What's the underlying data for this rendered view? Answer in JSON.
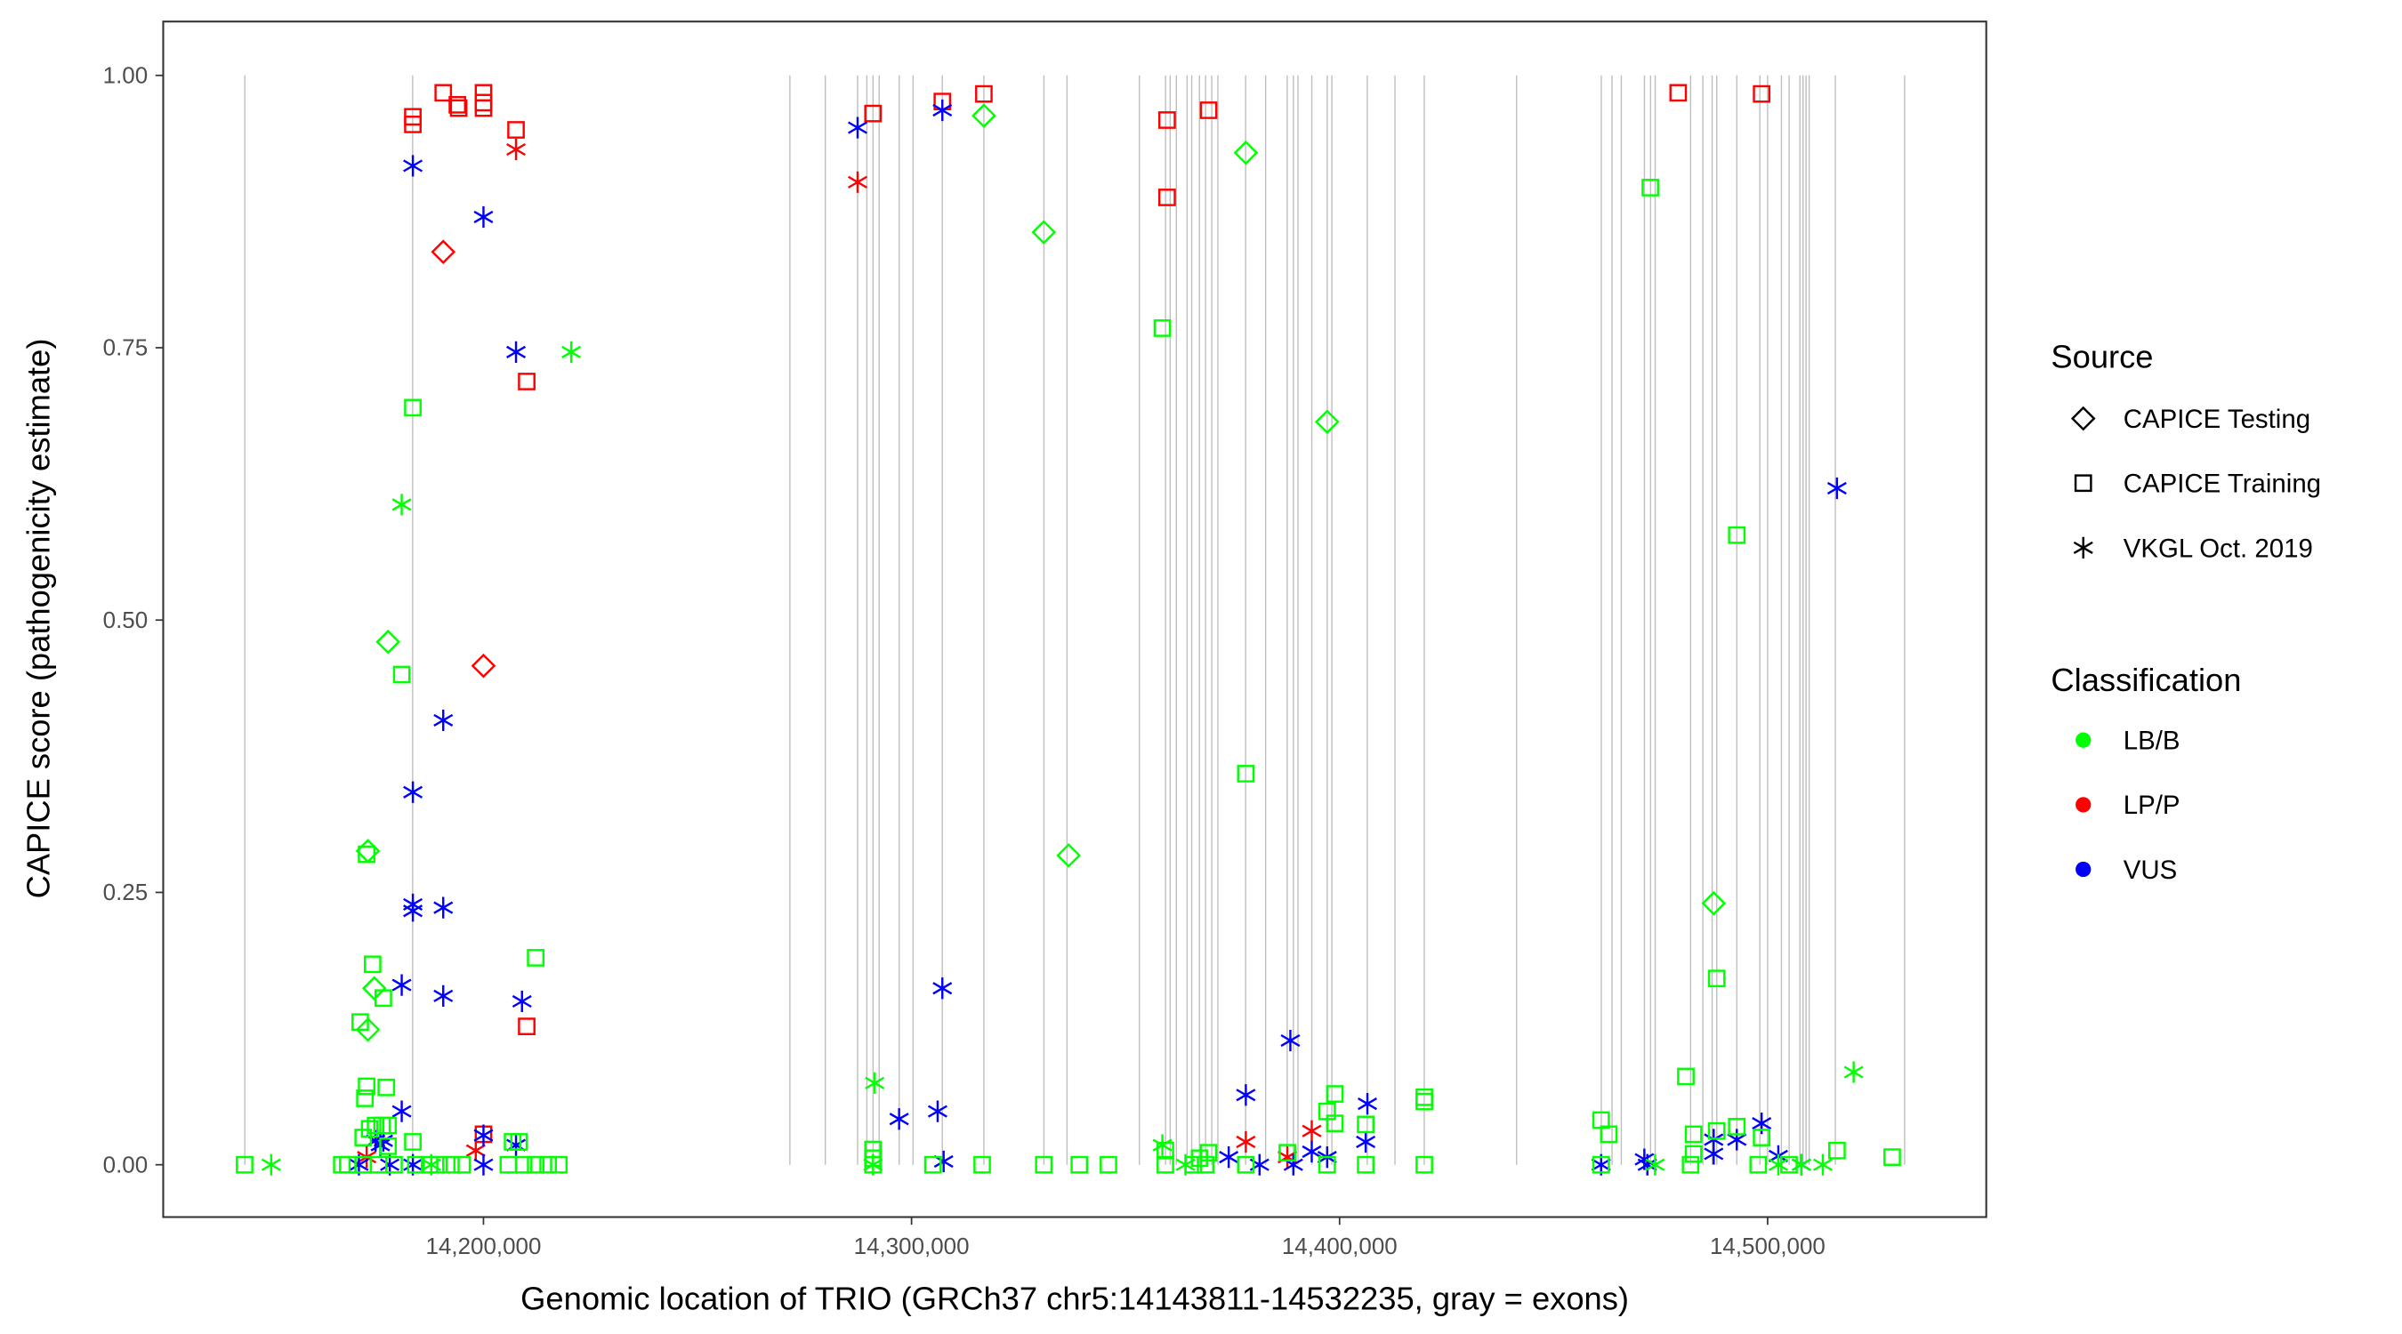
{
  "chart_data": {
    "type": "scatter",
    "title": "",
    "xlabel": "Genomic location of TRIO (GRCh37 chr5:14143811-14532235, gray = exons)",
    "ylabel": "CAPICE score (pathogenicity estimate)",
    "xlim": [
      14130000,
      14541000
    ],
    "ylim": [
      -0.05,
      1.05
    ],
    "x_ticks": [
      14200000,
      14300000,
      14400000,
      14500000
    ],
    "x_tick_labels": [
      "14,200,000",
      "14,300,000",
      "14,400,000",
      "14,500,000"
    ],
    "y_ticks": [
      0,
      0.25,
      0.5,
      0.75,
      1.0
    ],
    "y_tick_labels": [
      "0.00",
      "0.25",
      "0.50",
      "0.75",
      "1.00"
    ],
    "grid": false,
    "legend_placement": "right",
    "legend": {
      "source_title": "Source",
      "source_items": [
        {
          "label": "CAPICE Testing",
          "shape": "diamond"
        },
        {
          "label": "CAPICE Training",
          "shape": "square"
        },
        {
          "label": "VKGL Oct. 2019",
          "shape": "asterisk"
        }
      ],
      "class_title": "Classification",
      "class_items": [
        {
          "label": "LB/B",
          "color": "#00ff00"
        },
        {
          "label": "LP/P",
          "color": "#ff0000"
        },
        {
          "label": "VUS",
          "color": "#0000ff"
        }
      ]
    },
    "exon_color": "#bebebe",
    "exons": [
      14144246,
      14183454,
      14271580,
      14279853,
      14287407,
      14289565,
      14291004,
      14292443,
      14297119,
      14300356,
      14307191,
      14316903,
      14330931,
      14336326,
      14353232,
      14359347,
      14360426,
      14361865,
      14364383,
      14365462,
      14367261,
      14368699,
      14370138,
      14371577,
      14378052,
      14382728,
      14387763,
      14389202,
      14390281,
      14393519,
      14397116,
      14398195,
      14406468,
      14412942,
      14419777,
      14441359,
      14461142,
      14463660,
      14465818,
      14471214,
      14472653,
      14473732,
      14482005,
      14484882,
      14487041,
      14488120,
      14492796,
      14498191,
      14499990,
      14503227,
      14505026,
      14507544,
      14508263,
      14508983,
      14509702,
      14515817,
      14532003
    ],
    "series": [
      {
        "source": "CAPICE Training",
        "class": "LP/P",
        "points": [
          [
            14190600,
            0.984
          ],
          [
            14183500,
            0.962
          ],
          [
            14183500,
            0.955
          ],
          [
            14193900,
            0.973
          ],
          [
            14194200,
            0.97
          ],
          [
            14200000,
            0.984
          ],
          [
            14200000,
            0.975
          ],
          [
            14200000,
            0.97
          ],
          [
            14207600,
            0.95
          ],
          [
            14210100,
            0.719
          ],
          [
            14210100,
            0.127
          ],
          [
            14200000,
            0.028
          ],
          [
            14291000,
            0.965
          ],
          [
            14307200,
            0.976
          ],
          [
            14316900,
            0.983
          ],
          [
            14359700,
            0.959
          ],
          [
            14369400,
            0.968
          ],
          [
            14359700,
            0.888
          ],
          [
            14479100,
            0.984
          ],
          [
            14498600,
            0.983
          ]
        ]
      },
      {
        "source": "VKGL Oct. 2019",
        "class": "LP/P",
        "points": [
          [
            14207600,
            0.932
          ],
          [
            14198200,
            0.013
          ],
          [
            14172700,
            0.007
          ],
          [
            14287400,
            0.902
          ],
          [
            14378100,
            0.021
          ],
          [
            14393500,
            0.031
          ],
          [
            14387800,
            0.007
          ]
        ]
      },
      {
        "source": "CAPICE Testing",
        "class": "LP/P",
        "points": [
          [
            14190600,
            0.838
          ],
          [
            14200000,
            0.458
          ]
        ]
      },
      {
        "source": "VKGL Oct. 2019",
        "class": "VUS",
        "points": [
          [
            14183500,
            0.917
          ],
          [
            14200000,
            0.87
          ],
          [
            14207600,
            0.746
          ],
          [
            14190600,
            0.408
          ],
          [
            14183500,
            0.342
          ],
          [
            14183500,
            0.239
          ],
          [
            14183500,
            0.233
          ],
          [
            14190600,
            0.236
          ],
          [
            14180900,
            0.165
          ],
          [
            14190600,
            0.155
          ],
          [
            14209000,
            0.15
          ],
          [
            14180900,
            0.049
          ],
          [
            14174800,
            0.022
          ],
          [
            14176600,
            0.022
          ],
          [
            14175900,
            0.018
          ],
          [
            14207600,
            0.018
          ],
          [
            14200000,
            0.027
          ],
          [
            14170900,
            0.0
          ],
          [
            14183500,
            0.0
          ],
          [
            14178100,
            0.0
          ],
          [
            14200000,
            0.0
          ],
          [
            14287400,
            0.952
          ],
          [
            14307200,
            0.968
          ],
          [
            14307200,
            0.162
          ],
          [
            14297100,
            0.042
          ],
          [
            14306100,
            0.049
          ],
          [
            14307500,
            0.003
          ],
          [
            14388500,
            0.114
          ],
          [
            14378100,
            0.064
          ],
          [
            14406500,
            0.056
          ],
          [
            14406100,
            0.021
          ],
          [
            14374100,
            0.007
          ],
          [
            14381300,
            0.0
          ],
          [
            14389200,
            0.0
          ],
          [
            14393500,
            0.012
          ],
          [
            14397100,
            0.007
          ],
          [
            14516200,
            0.621
          ],
          [
            14498600,
            0.038
          ],
          [
            14492800,
            0.023
          ],
          [
            14487400,
            0.023
          ],
          [
            14487400,
            0.01
          ],
          [
            14502500,
            0.008
          ],
          [
            14461100,
            0.0
          ],
          [
            14471200,
            0.005
          ],
          [
            14471900,
            0.0
          ],
          [
            14507900,
            0.0
          ]
        ]
      },
      {
        "source": "CAPICE Testing",
        "class": "LB/B",
        "points": [
          [
            14177700,
            0.48
          ],
          [
            14173000,
            0.288
          ],
          [
            14174500,
            0.162
          ],
          [
            14173000,
            0.124
          ],
          [
            14316900,
            0.963
          ],
          [
            14330900,
            0.856
          ],
          [
            14336700,
            0.284
          ],
          [
            14378100,
            0.929
          ],
          [
            14397100,
            0.682
          ],
          [
            14487400,
            0.24
          ]
        ]
      },
      {
        "source": "CAPICE Training",
        "class": "LB/B",
        "points": [
          [
            14183500,
            0.695
          ],
          [
            14180900,
            0.45
          ],
          [
            14172700,
            0.285
          ],
          [
            14174100,
            0.184
          ],
          [
            14176600,
            0.153
          ],
          [
            14212200,
            0.19
          ],
          [
            14171200,
            0.131
          ],
          [
            14172700,
            0.072
          ],
          [
            14177300,
            0.071
          ],
          [
            14172300,
            0.061
          ],
          [
            14144200,
            0.0
          ],
          [
            14166900,
            0.0
          ],
          [
            14168300,
            0.0
          ],
          [
            14171900,
            0.0
          ],
          [
            14175500,
            0.0
          ],
          [
            14179100,
            0.0
          ],
          [
            14184200,
            0.0
          ],
          [
            14187400,
            0.0
          ],
          [
            14189600,
            0.0
          ],
          [
            14192400,
            0.0
          ],
          [
            14195000,
            0.0
          ],
          [
            14205800,
            0.0
          ],
          [
            14209400,
            0.0
          ],
          [
            14212200,
            0.0
          ],
          [
            14215100,
            0.0
          ],
          [
            14217600,
            0.0
          ],
          [
            14171900,
            0.025
          ],
          [
            14173400,
            0.033
          ],
          [
            14174800,
            0.036
          ],
          [
            14176300,
            0.036
          ],
          [
            14177700,
            0.036
          ],
          [
            14183500,
            0.021
          ],
          [
            14206800,
            0.021
          ],
          [
            14208300,
            0.021
          ],
          [
            14177700,
            0.017
          ],
          [
            14291000,
            0.014
          ],
          [
            14291000,
            0.006
          ],
          [
            14291000,
            0.0
          ],
          [
            14305000,
            0.0
          ],
          [
            14316500,
            0.0
          ],
          [
            14330900,
            0.0
          ],
          [
            14339200,
            0.0
          ],
          [
            14346000,
            0.0
          ],
          [
            14358600,
            0.768
          ],
          [
            14378100,
            0.359
          ],
          [
            14398900,
            0.065
          ],
          [
            14397100,
            0.049
          ],
          [
            14398900,
            0.038
          ],
          [
            14406100,
            0.037
          ],
          [
            14419800,
            0.062
          ],
          [
            14419800,
            0.058
          ],
          [
            14359300,
            0.013
          ],
          [
            14359300,
            0.0
          ],
          [
            14365800,
            0.0
          ],
          [
            14367300,
            0.006
          ],
          [
            14368700,
            0.0
          ],
          [
            14369400,
            0.011
          ],
          [
            14378100,
            0.0
          ],
          [
            14387800,
            0.011
          ],
          [
            14397100,
            0.0
          ],
          [
            14406100,
            0.0
          ],
          [
            14419800,
            0.0
          ],
          [
            14472600,
            0.897
          ],
          [
            14492800,
            0.578
          ],
          [
            14488100,
            0.171
          ],
          [
            14480900,
            0.081
          ],
          [
            14461100,
            0.041
          ],
          [
            14462900,
            0.028
          ],
          [
            14482700,
            0.028
          ],
          [
            14492800,
            0.035
          ],
          [
            14488100,
            0.031
          ],
          [
            14498600,
            0.025
          ],
          [
            14516200,
            0.013
          ],
          [
            14529100,
            0.007
          ],
          [
            14482700,
            0.01
          ],
          [
            14461100,
            0.0
          ],
          [
            14482000,
            0.0
          ],
          [
            14497800,
            0.0
          ],
          [
            14505000,
            0.0
          ]
        ]
      },
      {
        "source": "VKGL Oct. 2019",
        "class": "LB/B",
        "points": [
          [
            14220500,
            0.746
          ],
          [
            14180900,
            0.606
          ],
          [
            14150400,
            0.0
          ],
          [
            14187800,
            0.0
          ],
          [
            14291400,
            0.075
          ],
          [
            14291000,
            0.0
          ],
          [
            14358600,
            0.018
          ],
          [
            14364000,
            0.0
          ],
          [
            14520100,
            0.085
          ],
          [
            14473700,
            0.0
          ],
          [
            14502500,
            0.0
          ],
          [
            14507900,
            0.0
          ],
          [
            14512900,
            0.0
          ]
        ]
      }
    ]
  }
}
